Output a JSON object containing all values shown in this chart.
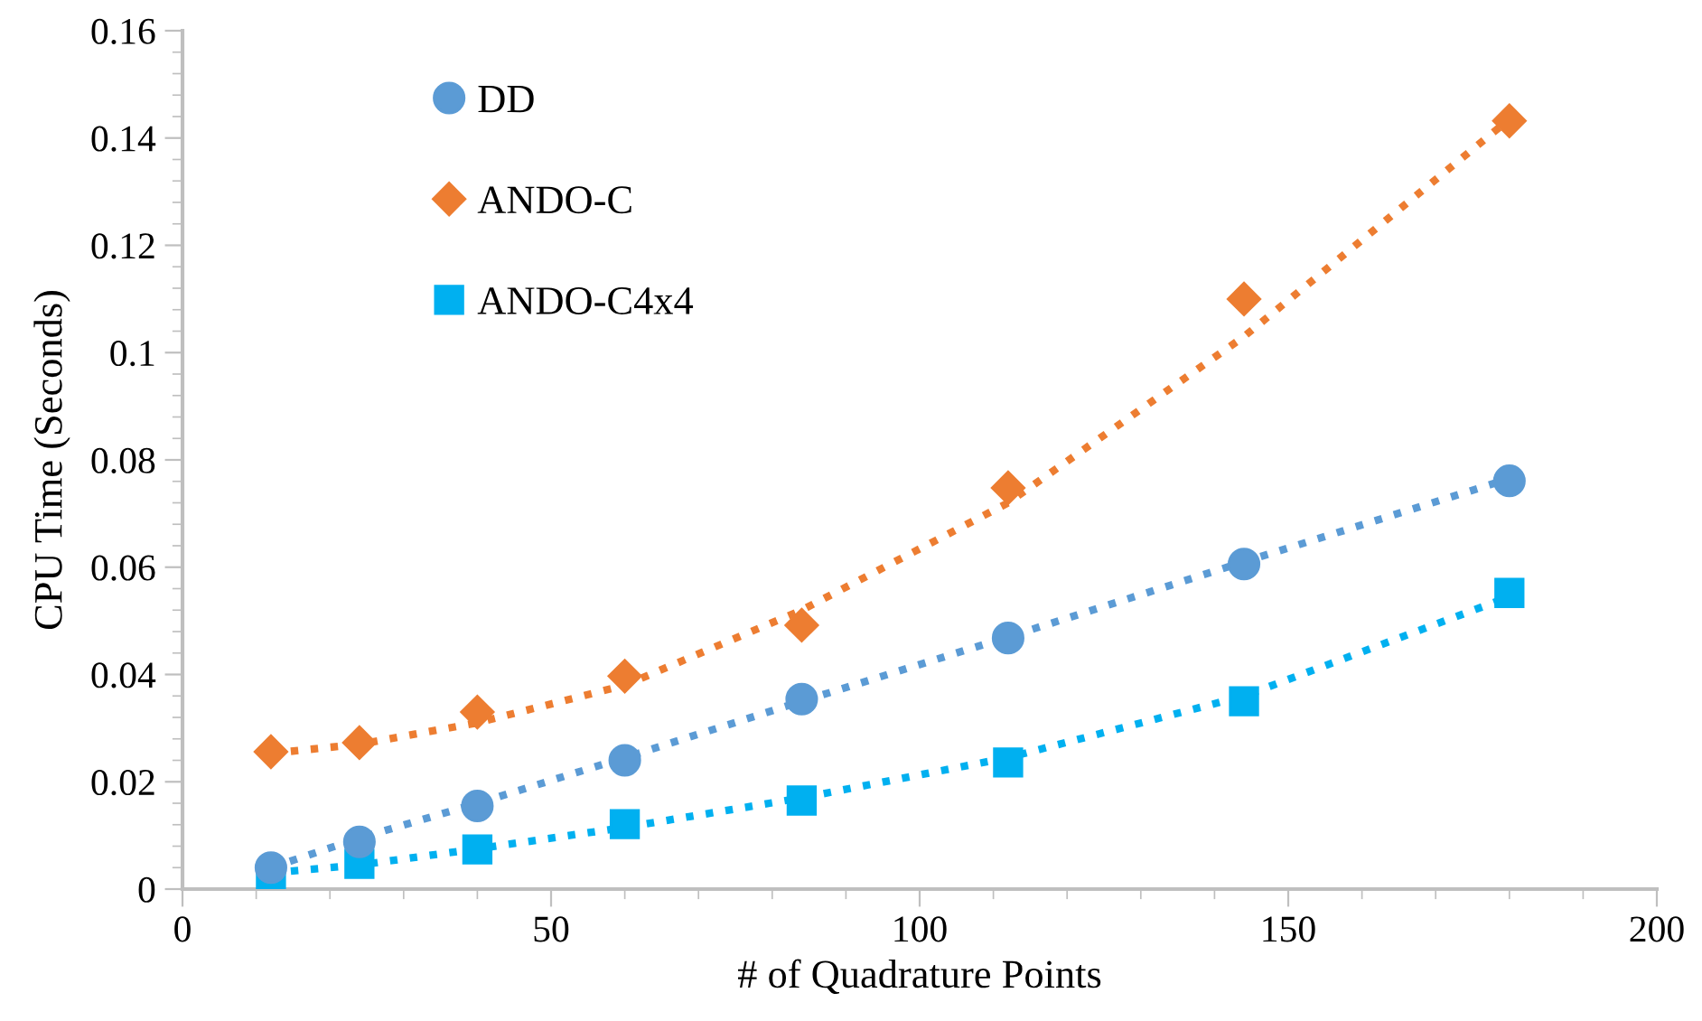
{
  "chart_data": {
    "type": "scatter",
    "xlabel": "# of Quadrature Points",
    "ylabel": "CPU Time (Seconds)",
    "xlim": [
      0,
      200
    ],
    "xticks": [
      0,
      50,
      100,
      150,
      200
    ],
    "ylim": [
      0,
      0.16
    ],
    "yticks": [
      0,
      0.02,
      0.04,
      0.06,
      0.08,
      0.1,
      0.12,
      0.14,
      0.16
    ],
    "grid": false,
    "legend": "top left",
    "series": [
      {
        "name": "DD",
        "color": "#5b9bd5",
        "marker": "circle",
        "x": [
          12,
          24,
          40,
          60,
          84,
          112,
          144,
          180
        ],
        "values": [
          0.004,
          0.0088,
          0.0155,
          0.024,
          0.0354,
          0.0468,
          0.0606,
          0.0761
        ]
      },
      {
        "name": "ANDO-C",
        "color": "#ed7d31",
        "marker": "diamond",
        "x": [
          12,
          24,
          40,
          60,
          84,
          112,
          144,
          180
        ],
        "values": [
          0.0256,
          0.0273,
          0.033,
          0.0397,
          0.0492,
          0.0748,
          0.11,
          0.1432
        ]
      },
      {
        "name": "ANDO-C4x4",
        "color": "#00b0f0",
        "marker": "square",
        "x": [
          12,
          24,
          40,
          60,
          84,
          112,
          144,
          180
        ],
        "values": [
          0.002,
          0.0047,
          0.0074,
          0.0121,
          0.0165,
          0.0236,
          0.035,
          0.0552
        ]
      },
      {
        "type": "line",
        "line_style": "dotted",
        "marker": "none",
        "color": "#5b9bd5",
        "x": [
          12,
          24,
          40,
          60,
          84,
          112,
          144,
          180
        ],
        "values": [
          0.004,
          0.0095,
          0.016,
          0.0245,
          0.035,
          0.047,
          0.061,
          0.0765
        ]
      },
      {
        "type": "line",
        "line_style": "dotted",
        "marker": "none",
        "color": "#ed7d31",
        "x": [
          12,
          24,
          40,
          60,
          84,
          112,
          144,
          180
        ],
        "values": [
          0.0253,
          0.027,
          0.031,
          0.038,
          0.052,
          0.072,
          0.103,
          0.1435
        ]
      },
      {
        "type": "line",
        "line_style": "dotted",
        "marker": "none",
        "color": "#00b0f0",
        "x": [
          12,
          24,
          40,
          60,
          84,
          112,
          144,
          180
        ],
        "values": [
          0.003,
          0.0045,
          0.0075,
          0.0115,
          0.017,
          0.0245,
          0.036,
          0.0545
        ]
      }
    ]
  }
}
